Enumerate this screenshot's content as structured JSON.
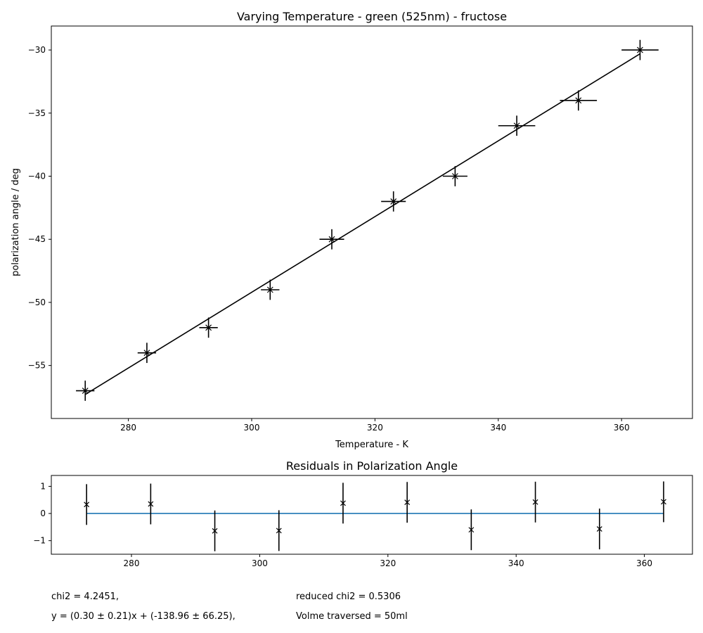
{
  "chart_data": [
    {
      "type": "scatter",
      "title": "Varying Temperature - green (525nm) - fructose",
      "xlabel": "Temperature - K",
      "ylabel": "polarization angle / deg",
      "xlim": [
        267.5,
        371.5
      ],
      "ylim": [
        -59.2,
        -28.1
      ],
      "xticks": [
        280,
        300,
        320,
        340,
        360
      ],
      "yticks": [
        -55,
        -50,
        -45,
        -40,
        -35,
        -30
      ],
      "grid": false,
      "points": [
        {
          "x": 273,
          "y": -57,
          "xerr": 1.5,
          "yerr": 0.8
        },
        {
          "x": 283,
          "y": -54,
          "xerr": 1.5,
          "yerr": 0.8
        },
        {
          "x": 293,
          "y": -52,
          "xerr": 1.5,
          "yerr": 0.8
        },
        {
          "x": 303,
          "y": -49,
          "xerr": 1.5,
          "yerr": 0.8
        },
        {
          "x": 313,
          "y": -45,
          "xerr": 2.0,
          "yerr": 0.8
        },
        {
          "x": 323,
          "y": -42,
          "xerr": 2.0,
          "yerr": 0.8
        },
        {
          "x": 333,
          "y": -40,
          "xerr": 2.0,
          "yerr": 0.8
        },
        {
          "x": 343,
          "y": -36,
          "xerr": 3.0,
          "yerr": 0.8
        },
        {
          "x": 353,
          "y": -34,
          "xerr": 3.0,
          "yerr": 0.8
        },
        {
          "x": 363,
          "y": -30,
          "xerr": 3.0,
          "yerr": 0.8
        }
      ],
      "fit_line": {
        "x": [
          273,
          363
        ],
        "y": [
          -57.3,
          -30.3
        ]
      }
    },
    {
      "type": "scatter",
      "title": "Residuals in Polarization Angle",
      "xlim": [
        267.5,
        367.5
      ],
      "ylim": [
        -1.5,
        1.4
      ],
      "xticks": [
        280,
        300,
        320,
        340,
        360
      ],
      "yticks": [
        1,
        0,
        -1
      ],
      "grid": false,
      "zero_line": {
        "y": 0,
        "x": [
          273,
          363
        ],
        "color": "#1f77b4"
      },
      "points": [
        {
          "x": 273,
          "y": 0.33,
          "yerr": 0.75
        },
        {
          "x": 283,
          "y": 0.35,
          "yerr": 0.75
        },
        {
          "x": 293,
          "y": -0.64,
          "yerr": 0.75
        },
        {
          "x": 303,
          "y": -0.63,
          "yerr": 0.75
        },
        {
          "x": 313,
          "y": 0.38,
          "yerr": 0.75
        },
        {
          "x": 323,
          "y": 0.41,
          "yerr": 0.75
        },
        {
          "x": 333,
          "y": -0.6,
          "yerr": 0.75
        },
        {
          "x": 343,
          "y": 0.42,
          "yerr": 0.75
        },
        {
          "x": 353,
          "y": -0.57,
          "yerr": 0.75
        },
        {
          "x": 363,
          "y": 0.43,
          "yerr": 0.75
        }
      ]
    }
  ],
  "annotations": {
    "chi2": "chi2 = 4.2451,",
    "reduced_chi2": "reduced chi2 = 0.5306",
    "fit_equation": "y = (0.30 ± 0.21)x + (-138.96 ± 66.25),",
    "volume": "Volme traversed = 50ml"
  }
}
